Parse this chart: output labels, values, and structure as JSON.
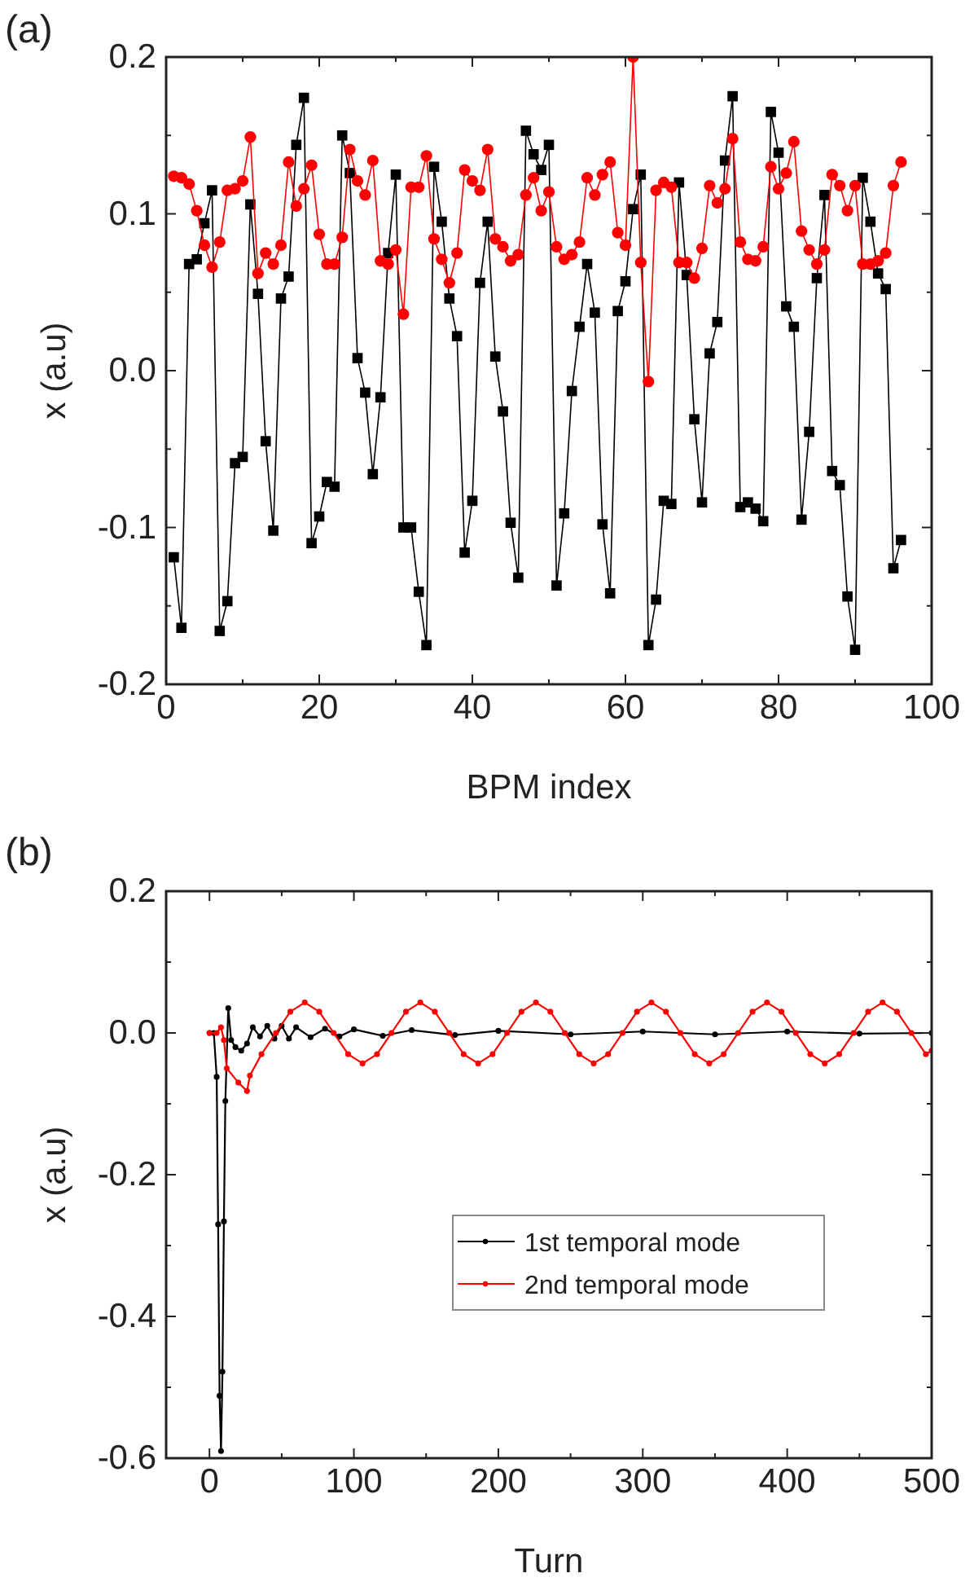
{
  "chart_data": [
    {
      "type": "line",
      "title": "(a)",
      "xlabel": "BPM index",
      "ylabel": "x (a.u)",
      "xlim": [
        0,
        100
      ],
      "ylim": [
        -0.2,
        0.2
      ],
      "xticks": [
        0,
        {
          "value": 10,
          "label": null
        },
        20,
        {
          "value": 30,
          "label": null
        },
        40,
        {
          "value": 50,
          "label": null
        },
        60,
        {
          "value": 70,
          "label": null
        },
        80,
        {
          "value": 90,
          "label": null
        },
        100
      ],
      "yticks": [
        {
          "value": -0.2,
          "label": "-0.2"
        },
        {
          "value": -0.15,
          "label": null
        },
        {
          "value": -0.1,
          "label": "-0.1"
        },
        {
          "value": -0.05,
          "label": null
        },
        {
          "value": 0,
          "label": "0.0"
        },
        {
          "value": 0.05,
          "label": null
        },
        {
          "value": 0.1,
          "label": "0.1"
        },
        {
          "value": 0.15,
          "label": null
        },
        {
          "value": 0.2,
          "label": "0.2"
        }
      ],
      "grid": false,
      "legend": false,
      "x": [
        1,
        2,
        3,
        4,
        5,
        6,
        7,
        8,
        9,
        10,
        11,
        12,
        13,
        14,
        15,
        16,
        17,
        18,
        19,
        20,
        21,
        22,
        23,
        24,
        25,
        26,
        27,
        28,
        29,
        30,
        31,
        32,
        33,
        34,
        35,
        36,
        37,
        38,
        39,
        40,
        41,
        42,
        43,
        44,
        45,
        46,
        47,
        48,
        49,
        50,
        51,
        52,
        53,
        54,
        55,
        56,
        57,
        58,
        59,
        60,
        61,
        62,
        63,
        64,
        65,
        66,
        67,
        68,
        69,
        70,
        71,
        72,
        73,
        74,
        75,
        76,
        77,
        78,
        79,
        80,
        81,
        82,
        83,
        84,
        85,
        86,
        87,
        88,
        89,
        90,
        91,
        92,
        93,
        94,
        95,
        96
      ],
      "series": [
        {
          "color": "#000000",
          "marker": "square",
          "values": [
            -0.119,
            -0.164,
            0.068,
            0.071,
            0.094,
            0.115,
            -0.166,
            -0.147,
            -0.059,
            -0.055,
            0.106,
            0.049,
            -0.045,
            -0.102,
            0.046,
            0.06,
            0.144,
            0.174,
            -0.11,
            -0.093,
            -0.071,
            -0.074,
            0.15,
            0.126,
            0.008,
            -0.014,
            -0.066,
            -0.017,
            0.075,
            0.125,
            -0.1,
            -0.1,
            -0.141,
            -0.175,
            0.13,
            0.095,
            0.046,
            0.022,
            -0.116,
            -0.083,
            0.056,
            0.095,
            0.009,
            -0.026,
            -0.097,
            -0.132,
            0.153,
            0.138,
            0.128,
            0.144,
            -0.137,
            -0.091,
            -0.013,
            0.028,
            0.068,
            0.037,
            -0.098,
            -0.142,
            0.038,
            0.057,
            0.103,
            0.125,
            -0.175,
            -0.146,
            -0.083,
            -0.085,
            0.12,
            0.061,
            -0.031,
            -0.084,
            0.011,
            0.031,
            0.134,
            0.175,
            -0.087,
            -0.084,
            -0.088,
            -0.096,
            0.165,
            0.139,
            0.041,
            0.028,
            -0.095,
            -0.039,
            0.059,
            0.112,
            -0.064,
            -0.073,
            -0.144,
            -0.178,
            0.123,
            0.095,
            0.062,
            0.052,
            -0.126,
            -0.108
          ]
        },
        {
          "color": "#ff0000",
          "marker": "circle",
          "values": [
            0.124,
            0.123,
            0.119,
            0.102,
            0.08,
            0.066,
            0.082,
            0.115,
            0.116,
            0.121,
            0.149,
            0.062,
            0.075,
            0.068,
            0.08,
            0.133,
            0.105,
            0.116,
            0.131,
            0.087,
            0.068,
            0.068,
            0.085,
            0.141,
            0.121,
            0.112,
            0.134,
            0.07,
            0.068,
            0.077,
            0.036,
            0.117,
            0.117,
            0.137,
            0.084,
            0.071,
            0.056,
            0.075,
            0.128,
            0.121,
            0.115,
            0.141,
            0.084,
            0.079,
            0.07,
            0.074,
            0.112,
            0.123,
            0.102,
            0.114,
            0.079,
            0.071,
            0.074,
            0.082,
            0.123,
            0.112,
            0.125,
            0.133,
            0.088,
            0.08,
            0.2,
            0.069,
            -0.007,
            0.115,
            0.12,
            0.117,
            0.069,
            0.069,
            0.059,
            0.078,
            0.118,
            0.107,
            0.116,
            0.148,
            0.082,
            0.071,
            0.07,
            0.079,
            0.13,
            0.116,
            0.126,
            0.146,
            0.089,
            0.077,
            0.068,
            0.077,
            0.125,
            0.118,
            0.102,
            0.118,
            0.068,
            0.068,
            0.07,
            0.075,
            0.118,
            0.133
          ]
        }
      ]
    },
    {
      "type": "line",
      "title": "(b)",
      "xlabel": "Turn",
      "ylabel": "x (a.u)",
      "xlim": [
        -30,
        500
      ],
      "ylim": [
        -0.6,
        0.2
      ],
      "xticks": [
        0,
        {
          "value": 50,
          "label": null
        },
        100,
        {
          "value": 150,
          "label": null
        },
        200,
        {
          "value": 250,
          "label": null
        },
        300,
        {
          "value": 350,
          "label": null
        },
        400,
        {
          "value": 450,
          "label": null
        },
        500
      ],
      "yticks": [
        {
          "value": -0.6,
          "label": "-0.6"
        },
        {
          "value": -0.5,
          "label": null
        },
        {
          "value": -0.4,
          "label": "-0.4"
        },
        {
          "value": -0.3,
          "label": null
        },
        {
          "value": -0.2,
          "label": "-0.2"
        },
        {
          "value": -0.1,
          "label": null
        },
        {
          "value": 0,
          "label": "0.0"
        },
        {
          "value": 0.1,
          "label": null
        },
        {
          "value": 0.2,
          "label": "0.2"
        }
      ],
      "grid": false,
      "legend": "right",
      "marker": "circle",
      "series": [
        {
          "name": "1st temporal mode",
          "color": "#000000",
          "x": [
            0,
            3,
            5,
            6,
            7,
            8,
            9,
            10,
            11,
            13,
            15,
            18,
            22,
            26,
            30,
            35,
            40,
            45,
            50,
            55,
            60,
            70,
            80,
            90,
            100,
            120,
            140,
            170,
            200,
            250,
            300,
            350,
            400,
            450,
            500
          ],
          "values": [
            0,
            0,
            -0.062,
            -0.27,
            -0.512,
            -0.59,
            -0.478,
            -0.266,
            -0.096,
            0.035,
            -0.01,
            -0.02,
            -0.025,
            -0.015,
            0.008,
            -0.005,
            0.01,
            -0.008,
            0.01,
            -0.008,
            0.008,
            -0.006,
            0.006,
            -0.005,
            0.005,
            -0.004,
            0.004,
            -0.003,
            0.003,
            -0.002,
            0.002,
            -0.002,
            0.002,
            -0.001,
            0
          ]
        },
        {
          "name": "2nd temporal mode",
          "color": "#ff0000",
          "x": [
            0,
            5,
            8,
            10,
            12,
            20,
            26,
            28,
            36,
            46,
            56,
            66,
            76,
            86,
            96,
            106,
            116,
            126,
            136,
            146,
            156,
            166,
            176,
            186,
            196,
            206,
            216,
            226,
            236,
            246,
            256,
            266,
            276,
            286,
            296,
            306,
            316,
            326,
            336,
            346,
            356,
            366,
            376,
            386,
            396,
            406,
            416,
            426,
            436,
            446,
            456,
            466,
            476,
            486,
            496,
            500
          ],
          "values": [
            0,
            0,
            0.008,
            -0.01,
            -0.05,
            -0.07,
            -0.082,
            -0.06,
            -0.03,
            0,
            0.03,
            0.043,
            0.03,
            0,
            -0.03,
            -0.043,
            -0.03,
            0,
            0.03,
            0.043,
            0.03,
            0,
            -0.03,
            -0.043,
            -0.03,
            0,
            0.03,
            0.043,
            0.03,
            0,
            -0.03,
            -0.043,
            -0.03,
            0,
            0.03,
            0.043,
            0.03,
            0,
            -0.03,
            -0.043,
            -0.03,
            0,
            0.03,
            0.043,
            0.03,
            0,
            -0.03,
            -0.043,
            -0.03,
            0,
            0.03,
            0.043,
            0.03,
            0,
            -0.03,
            -0.025
          ]
        }
      ]
    }
  ]
}
